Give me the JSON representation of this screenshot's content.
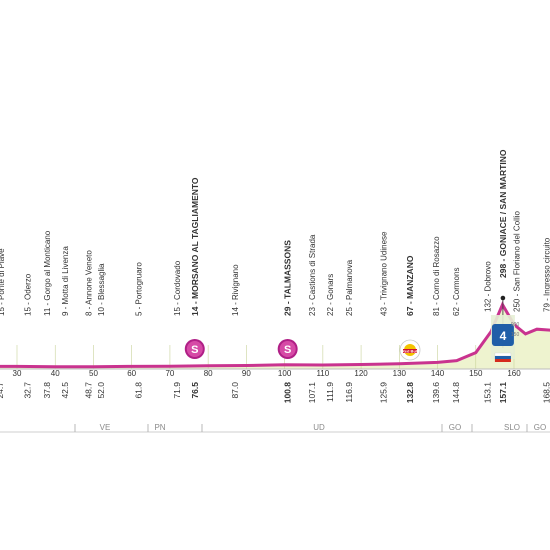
{
  "chart_data": {
    "type": "area",
    "xlabel": "",
    "ylabel": "",
    "colors": {
      "profile_line": "#c9338f",
      "profile_fill": "#eef3cf",
      "axis_text": "#333333",
      "region_text": "#8a8a8a"
    },
    "x": [
      0,
      10,
      20,
      30,
      40,
      50,
      60,
      70,
      80,
      90,
      100,
      110,
      120,
      130,
      140,
      145,
      150,
      154,
      157,
      160,
      163,
      166,
      170
    ],
    "y": [
      10,
      10,
      11,
      11,
      10,
      10,
      11,
      12,
      14,
      15,
      18,
      17,
      19,
      22,
      28,
      36,
      70,
      160,
      275,
      190,
      150,
      170,
      165
    ],
    "xlim": [
      0,
      170
    ],
    "x_ticks": [
      "30",
      "40",
      "50",
      "60",
      "70",
      "80",
      "90",
      "100",
      "110",
      "120",
      "130",
      "140",
      "150",
      "160"
    ],
    "distance_row": [
      "32.7",
      "37.8",
      "42.5",
      "48.7",
      "52.0",
      "61.8",
      "71.9",
      "76.5",
      "87.0",
      "100.8",
      "107.1",
      "111.9",
      "116.9",
      "125.9",
      "132.8",
      "139.6",
      "144.8",
      "153.1",
      "157.1",
      "168.5"
    ],
    "regions": [
      "VE",
      "PN",
      "UD",
      "GO",
      "SLO",
      "GO"
    ],
    "places": [
      {
        "name": "15 - Oderzo",
        "bold": false
      },
      {
        "name": "11 - Gorgo al Monticano",
        "bold": false
      },
      {
        "name": "9 - Motta di Livenza",
        "bold": false
      },
      {
        "name": "8 - Annone Veneto",
        "bold": false
      },
      {
        "name": "10 - Blessaglia",
        "bold": false
      },
      {
        "name": "5 - Portogruaro",
        "bold": false
      },
      {
        "name": "15 - Cordovado",
        "bold": false
      },
      {
        "name": "14 - MORSANO AL TAGLIAMENTO",
        "bold": true
      },
      {
        "name": "14 - Rivignano",
        "bold": false
      },
      {
        "name": "29 - TALMASSONS",
        "bold": true
      },
      {
        "name": "23 - Castions di Strada",
        "bold": false
      },
      {
        "name": "22 - Gonars",
        "bold": false
      },
      {
        "name": "25 - Palmanova",
        "bold": false
      },
      {
        "name": "43 - Trivignano Udinese",
        "bold": false
      },
      {
        "name": "67 - MANZANO",
        "bold": true
      },
      {
        "name": "81 - Corno di Rosazzo",
        "bold": false
      },
      {
        "name": "62 - Cormons",
        "bold": false
      },
      {
        "name": "132 - Dobrovo",
        "bold": false
      },
      {
        "name": "298 - GONIACE / SAN MARTINO",
        "bold": true
      },
      {
        "name": "250 - San Floriano del Collio",
        "bold": false
      },
      {
        "name": "79 - Ingresso circuito",
        "bold": false
      }
    ],
    "markers": [
      {
        "label": "S",
        "km": 76.5
      },
      {
        "label": "S",
        "km": 100.8
      },
      {
        "label": "Red Bull",
        "km": 132.8
      },
      {
        "label": "4",
        "km": 157.1
      }
    ],
    "left_edge_label": "15 - Ponte di Piave",
    "left_edge_distance": "24.7",
    "peak_annotation": [
      "900",
      "150"
    ]
  }
}
